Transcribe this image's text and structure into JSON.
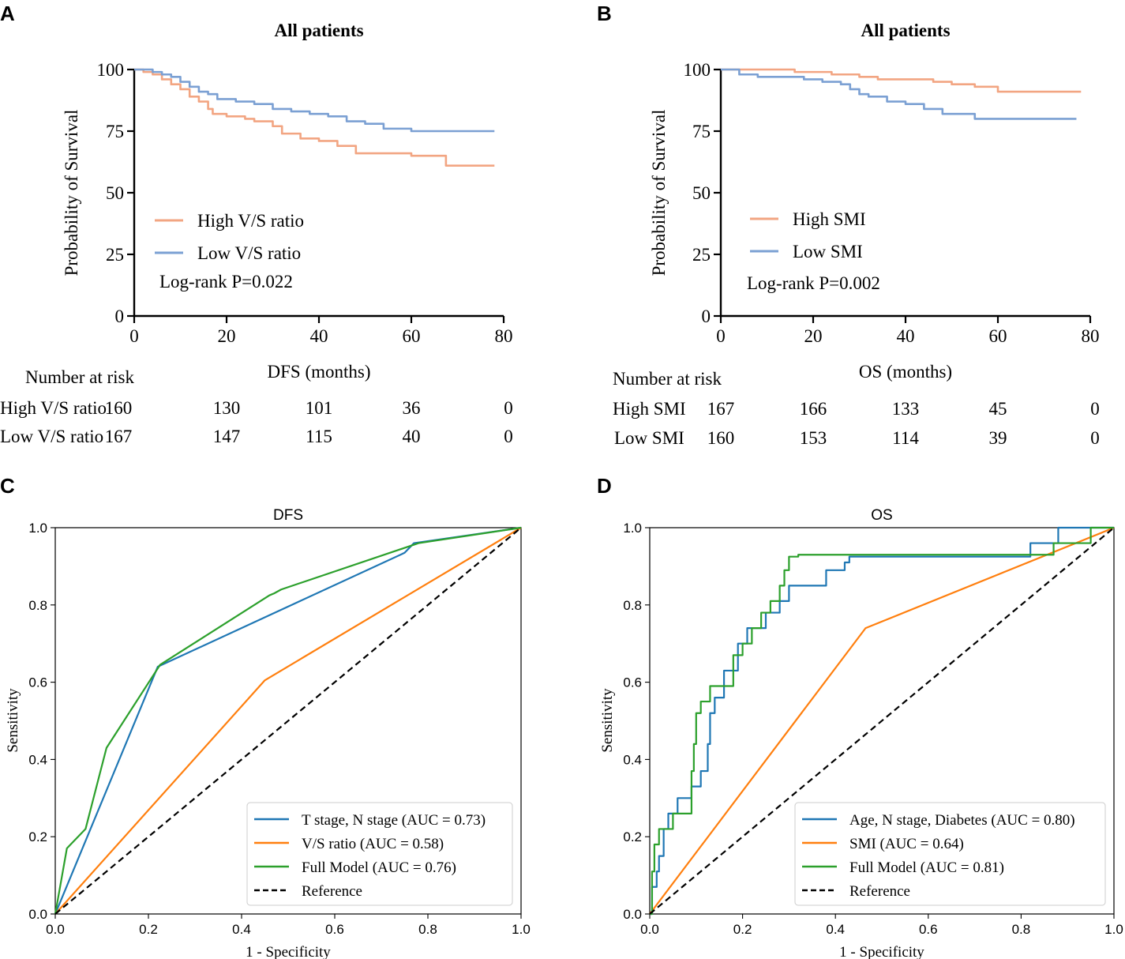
{
  "figure": {
    "panel_labels": [
      "A",
      "B",
      "C",
      "D"
    ]
  },
  "colors": {
    "km_high": "#F2A582",
    "km_low": "#7BA0D3",
    "roc_blue": "#1F77B4",
    "roc_orange": "#FF7F0E",
    "roc_green": "#2CA02C",
    "reference": "#000000"
  },
  "chart_data": [
    {
      "panel": "A",
      "type": "line",
      "subtype": "kaplan-meier",
      "title": "All patients",
      "xlabel": "DFS (months)",
      "ylabel": "Probability of Survival",
      "xlim": [
        0,
        80
      ],
      "ylim": [
        0,
        100
      ],
      "xticks": [
        "0",
        "20",
        "40",
        "60",
        "80"
      ],
      "yticks": [
        "0",
        "25",
        "50",
        "75",
        "100"
      ],
      "series": [
        {
          "name": "High V/S ratio",
          "color": "#F2A582",
          "x": [
            0,
            2,
            4,
            6,
            8,
            10,
            12,
            14,
            16,
            17,
            20,
            24,
            26,
            30,
            32,
            36,
            40,
            44,
            48,
            55,
            60,
            64,
            67,
            67.5,
            78
          ],
          "y": [
            100,
            99,
            98,
            96,
            94,
            92,
            89,
            87,
            84,
            82,
            81,
            80,
            79,
            77,
            74,
            72,
            71,
            69,
            66,
            66,
            65,
            65,
            65,
            61,
            61
          ]
        },
        {
          "name": "Low V/S ratio",
          "color": "#7BA0D3",
          "x": [
            0,
            2,
            4,
            6,
            8,
            10,
            12,
            14,
            16,
            18,
            22,
            26,
            30,
            34,
            38,
            42,
            46,
            50,
            54,
            60,
            70,
            78
          ],
          "y": [
            100,
            100,
            99,
            98,
            97,
            95,
            93,
            91,
            90,
            88,
            87,
            86,
            84,
            83,
            82,
            81,
            79,
            78,
            76,
            75,
            75,
            75
          ]
        }
      ],
      "legend_location": "center-left",
      "annotation": "Log-rank P=0.022",
      "risk_table": {
        "header": "Number at risk",
        "time_points": [
          0,
          20,
          40,
          60,
          80
        ],
        "rows": [
          {
            "label": "High V/S ratio",
            "values": [
              "160",
              "130",
              "101",
              "36",
              "0"
            ]
          },
          {
            "label": "Low V/S ratio",
            "values": [
              "167",
              "147",
              "115",
              "40",
              "0"
            ]
          }
        ]
      }
    },
    {
      "panel": "B",
      "type": "line",
      "subtype": "kaplan-meier",
      "title": "All patients",
      "xlabel": "OS (months)",
      "ylabel": "Probability of Survival",
      "xlim": [
        0,
        80
      ],
      "ylim": [
        0,
        100
      ],
      "xticks": [
        "0",
        "20",
        "40",
        "60",
        "80"
      ],
      "yticks": [
        "0",
        "25",
        "50",
        "75",
        "100"
      ],
      "series": [
        {
          "name": "High SMI",
          "color": "#F2A582",
          "x": [
            0,
            10,
            16,
            20,
            24,
            30,
            34,
            40,
            46,
            50,
            55,
            58,
            60,
            70,
            78
          ],
          "y": [
            100,
            100,
            99,
            99,
            98,
            97,
            96,
            96,
            95,
            94,
            93,
            93,
            91,
            91,
            91
          ]
        },
        {
          "name": "Low SMI",
          "color": "#7BA0D3",
          "x": [
            0,
            4,
            8,
            12,
            18,
            22,
            26,
            28,
            30,
            32,
            36,
            40,
            44,
            48,
            52,
            55,
            60,
            70,
            77
          ],
          "y": [
            100,
            98,
            97,
            97,
            96,
            95,
            94,
            92,
            90,
            89,
            87,
            86,
            84,
            82,
            82,
            80,
            80,
            80,
            80
          ]
        }
      ],
      "legend_location": "center-left",
      "annotation": "Log-rank P=0.002",
      "risk_table": {
        "header": "Number at risk",
        "time_points": [
          0,
          20,
          40,
          60,
          80
        ],
        "rows": [
          {
            "label": "High SMI",
            "values": [
              "167",
              "166",
              "133",
              "45",
              "0"
            ]
          },
          {
            "label": "Low SMI",
            "values": [
              "160",
              "153",
              "114",
              "39",
              "0"
            ]
          }
        ]
      }
    },
    {
      "panel": "C",
      "type": "line",
      "subtype": "roc",
      "title": "DFS",
      "xlabel": "1 - Specificity",
      "ylabel": "Sensitivity",
      "xlim": [
        0,
        1
      ],
      "ylim": [
        0,
        1
      ],
      "xticks": [
        "0.0",
        "0.2",
        "0.4",
        "0.6",
        "0.8",
        "1.0"
      ],
      "yticks": [
        "0.0",
        "0.2",
        "0.4",
        "0.6",
        "0.8",
        "1.0"
      ],
      "series": [
        {
          "name": "T stage, N stage (AUC = 0.73)",
          "color": "#1F77B4",
          "x": [
            0,
            0.22,
            0.75,
            0.77,
            1.0
          ],
          "y": [
            0,
            0.64,
            0.935,
            0.96,
            1.0
          ]
        },
        {
          "name": "V/S ratio (AUC = 0.58)",
          "color": "#FF7F0E",
          "x": [
            0,
            0.45,
            1.0
          ],
          "y": [
            0,
            0.605,
            1.0
          ]
        },
        {
          "name": "Full Model (AUC = 0.76)",
          "color": "#2CA02C",
          "x": [
            0,
            0.025,
            0.065,
            0.11,
            0.225,
            0.46,
            0.47,
            0.485,
            0.78,
            1.0
          ],
          "y": [
            0,
            0.17,
            0.22,
            0.43,
            0.645,
            0.825,
            0.83,
            0.84,
            0.96,
            1.0
          ]
        },
        {
          "name": "Reference",
          "color": "#000000",
          "dashed": true,
          "x": [
            0,
            1
          ],
          "y": [
            0,
            1
          ]
        }
      ],
      "legend_location": "lower-right"
    },
    {
      "panel": "D",
      "type": "line",
      "subtype": "roc",
      "title": "OS",
      "xlabel": "1 - Specificity",
      "ylabel": "Sensitivity",
      "xlim": [
        0,
        1
      ],
      "ylim": [
        0,
        1
      ],
      "xticks": [
        "0.0",
        "0.2",
        "0.4",
        "0.6",
        "0.8",
        "1.0"
      ],
      "yticks": [
        "0.0",
        "0.2",
        "0.4",
        "0.6",
        "0.8",
        "1.0"
      ],
      "series": [
        {
          "name": "Age, N stage, Diabetes (AUC = 0.80)",
          "color": "#1F77B4",
          "x": [
            0,
            0.005,
            0.005,
            0.015,
            0.015,
            0.02,
            0.02,
            0.03,
            0.03,
            0.04,
            0.04,
            0.06,
            0.06,
            0.09,
            0.09,
            0.11,
            0.11,
            0.125,
            0.125,
            0.13,
            0.13,
            0.14,
            0.14,
            0.16,
            0.16,
            0.19,
            0.19,
            0.21,
            0.21,
            0.25,
            0.25,
            0.28,
            0.28,
            0.3,
            0.3,
            0.38,
            0.38,
            0.42,
            0.42,
            0.43,
            0.43,
            0.82,
            0.82,
            0.88,
            0.88,
            0.91,
            0.91,
            1.0
          ],
          "y": [
            0,
            0,
            0.07,
            0.07,
            0.11,
            0.11,
            0.15,
            0.15,
            0.22,
            0.22,
            0.26,
            0.26,
            0.3,
            0.3,
            0.33,
            0.33,
            0.37,
            0.37,
            0.44,
            0.44,
            0.52,
            0.52,
            0.56,
            0.56,
            0.63,
            0.63,
            0.7,
            0.7,
            0.74,
            0.74,
            0.78,
            0.78,
            0.81,
            0.81,
            0.85,
            0.85,
            0.89,
            0.89,
            0.91,
            0.91,
            0.925,
            0.925,
            0.96,
            0.96,
            1.0,
            1.0,
            1.0,
            1.0
          ]
        },
        {
          "name": "SMI (AUC = 0.64)",
          "color": "#FF7F0E",
          "x": [
            0,
            0.465,
            1.0
          ],
          "y": [
            0,
            0.74,
            1.0
          ]
        },
        {
          "name": "Full Model (AUC = 0.81)",
          "color": "#2CA02C",
          "x": [
            0,
            0.005,
            0.005,
            0.01,
            0.01,
            0.02,
            0.02,
            0.05,
            0.05,
            0.09,
            0.09,
            0.095,
            0.095,
            0.1,
            0.1,
            0.11,
            0.11,
            0.13,
            0.13,
            0.18,
            0.18,
            0.2,
            0.2,
            0.22,
            0.22,
            0.24,
            0.24,
            0.26,
            0.26,
            0.28,
            0.28,
            0.29,
            0.29,
            0.3,
            0.3,
            0.32,
            0.32,
            0.87,
            0.87,
            0.95,
            0.95,
            1.0
          ],
          "y": [
            0,
            0,
            0.11,
            0.11,
            0.18,
            0.18,
            0.22,
            0.22,
            0.26,
            0.26,
            0.37,
            0.37,
            0.44,
            0.44,
            0.52,
            0.52,
            0.55,
            0.55,
            0.59,
            0.59,
            0.67,
            0.67,
            0.7,
            0.7,
            0.74,
            0.74,
            0.78,
            0.78,
            0.81,
            0.81,
            0.85,
            0.85,
            0.89,
            0.89,
            0.925,
            0.925,
            0.93,
            0.93,
            0.96,
            0.96,
            1.0,
            1.0
          ]
        },
        {
          "name": "Reference",
          "color": "#000000",
          "dashed": true,
          "x": [
            0,
            1
          ],
          "y": [
            0,
            1
          ]
        }
      ],
      "legend_location": "lower-right"
    }
  ]
}
